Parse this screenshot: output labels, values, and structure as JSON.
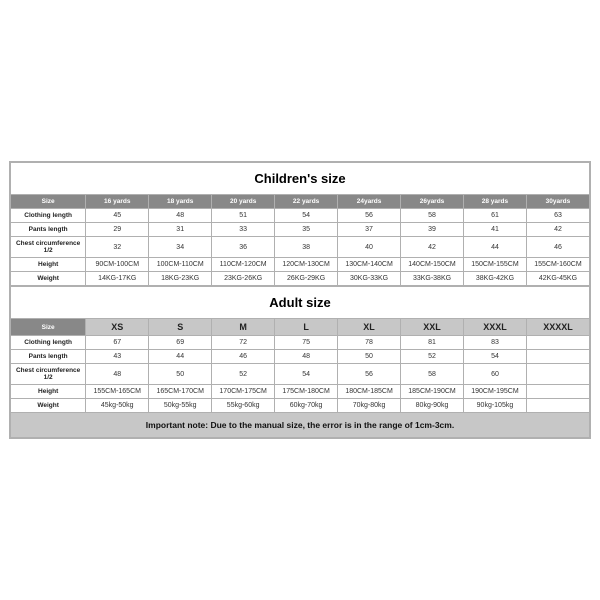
{
  "childrenTitle": "Children's size",
  "adultTitle": "Adult size",
  "note": "Important note: Due to the manual size, the error is in the range of 1cm-3cm.",
  "childrenHeaders": [
    "Size",
    "16 yards",
    "18 yards",
    "20 yards",
    "22 yards",
    "24yards",
    "26yards",
    "28 yards",
    "30yards"
  ],
  "childrenRows": [
    {
      "label": "Clothing length",
      "values": [
        "45",
        "48",
        "51",
        "54",
        "56",
        "58",
        "61",
        "63"
      ]
    },
    {
      "label": "Pants length",
      "values": [
        "29",
        "31",
        "33",
        "35",
        "37",
        "39",
        "41",
        "42"
      ]
    },
    {
      "label": "Chest circumference 1/2",
      "values": [
        "32",
        "34",
        "36",
        "38",
        "40",
        "42",
        "44",
        "46"
      ]
    },
    {
      "label": "Height",
      "values": [
        "90CM-100CM",
        "100CM-110CM",
        "110CM-120CM",
        "120CM-130CM",
        "130CM-140CM",
        "140CM-150CM",
        "150CM-155CM",
        "155CM-160CM"
      ]
    },
    {
      "label": "Weight",
      "values": [
        "14KG-17KG",
        "18KG-23KG",
        "23KG-26KG",
        "26KG-29KG",
        "30KG-33KG",
        "33KG-38KG",
        "38KG-42KG",
        "42KG-45KG"
      ]
    }
  ],
  "adultHeaders": [
    "Size",
    "XS",
    "S",
    "M",
    "L",
    "XL",
    "XXL",
    "XXXL",
    "XXXXL"
  ],
  "adultRows": [
    {
      "label": "Clothing length",
      "values": [
        "67",
        "69",
        "72",
        "75",
        "78",
        "81",
        "83",
        ""
      ]
    },
    {
      "label": "Pants length",
      "values": [
        "43",
        "44",
        "46",
        "48",
        "50",
        "52",
        "54",
        ""
      ]
    },
    {
      "label": "Chest circumference 1/2",
      "values": [
        "48",
        "50",
        "52",
        "54",
        "56",
        "58",
        "60",
        ""
      ]
    },
    {
      "label": "Height",
      "values": [
        "155CM-165CM",
        "165CM-170CM",
        "170CM-175CM",
        "175CM-180CM",
        "180CM-185CM",
        "185CM-190CM",
        "190CM-195CM",
        ""
      ]
    },
    {
      "label": "Weight",
      "values": [
        "45kg-50kg",
        "50kg-55kg",
        "55kg-60kg",
        "60kg-70kg",
        "70kg-80kg",
        "80kg-90kg",
        "90kg-105kg",
        ""
      ]
    }
  ]
}
